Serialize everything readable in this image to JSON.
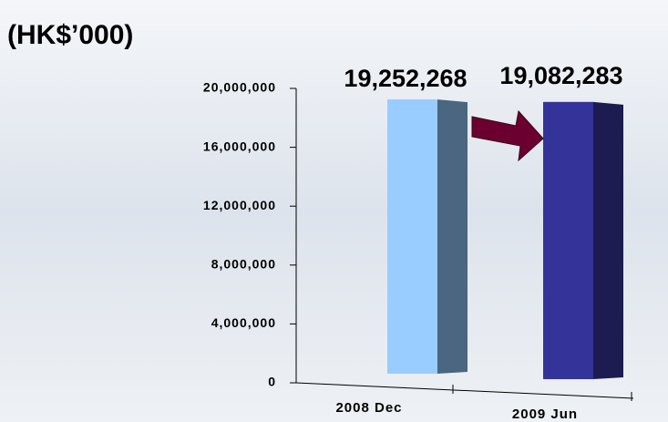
{
  "chart_data": {
    "type": "bar",
    "title": "(HK$’000)",
    "categories": [
      "2008 Dec",
      "2009 Jun"
    ],
    "values": [
      19252268,
      19082283
    ],
    "value_labels": [
      "19,252,268",
      "19,082,283"
    ],
    "colors": [
      "#99ccff",
      "#333399"
    ],
    "side_colors": [
      "#4a6680",
      "#1c1c50"
    ],
    "ylim": [
      0,
      20000000
    ],
    "yticks": [
      {
        "value": 0,
        "label": "0"
      },
      {
        "value": 4000000,
        "label": "4,000,000"
      },
      {
        "value": 8000000,
        "label": "8,000,000"
      },
      {
        "value": 12000000,
        "label": "12,000,000"
      },
      {
        "value": 16000000,
        "label": "16,000,000"
      },
      {
        "value": 20000000,
        "label": "20,000,000"
      }
    ],
    "grid": false
  }
}
